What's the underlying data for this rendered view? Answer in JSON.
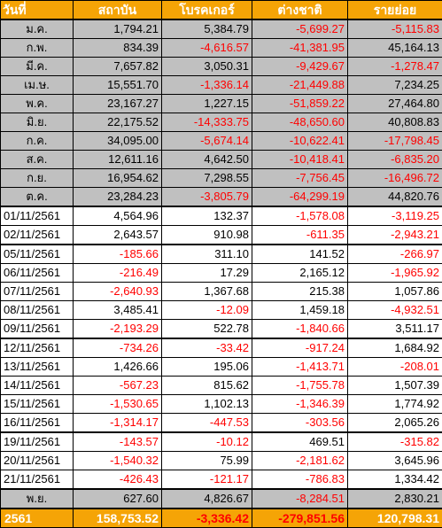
{
  "colors": {
    "header_bg": "#f5a406",
    "month_bg": "#c0c0c0",
    "negative": "#ff0000"
  },
  "headers": [
    "วันที่",
    "สถาบัน",
    "โบรคเกอร์",
    "ต่างชาติ",
    "รายย่อย"
  ],
  "rows": [
    {
      "type": "month",
      "label": "ม.ค.",
      "values": [
        "1,794.21",
        "5,384.79",
        "-5,699.27",
        "-5,115.83"
      ]
    },
    {
      "type": "month",
      "label": "ก.พ.",
      "values": [
        "834.39",
        "-4,616.57",
        "-41,381.95",
        "45,164.13"
      ]
    },
    {
      "type": "month",
      "label": "มี.ค.",
      "values": [
        "7,657.82",
        "3,050.31",
        "-9,429.67",
        "-1,278.47"
      ]
    },
    {
      "type": "month",
      "label": "เม.ษ.",
      "values": [
        "15,551.70",
        "-1,336.14",
        "-21,449.88",
        "7,234.25"
      ]
    },
    {
      "type": "month",
      "label": "พ.ค.",
      "values": [
        "23,167.27",
        "1,227.15",
        "-51,859.22",
        "27,464.80"
      ]
    },
    {
      "type": "month",
      "label": "มิ.ย.",
      "values": [
        "22,175.52",
        "-14,333.75",
        "-48,650.60",
        "40,808.83"
      ]
    },
    {
      "type": "month",
      "label": "ก.ค.",
      "values": [
        "34,095.00",
        "-5,674.14",
        "-10,622.41",
        "-17,798.45"
      ]
    },
    {
      "type": "month",
      "label": "ส.ค.",
      "values": [
        "12,611.16",
        "4,642.50",
        "-10,418.41",
        "-6,835.20"
      ]
    },
    {
      "type": "month",
      "label": "ก.ย.",
      "values": [
        "16,954.62",
        "7,298.55",
        "-7,756.45",
        "-16,496.72"
      ]
    },
    {
      "type": "month",
      "label": "ต.ค.",
      "values": [
        "23,284.23",
        "-3,805.79",
        "-64,299.19",
        "44,820.76"
      ]
    },
    {
      "type": "day",
      "label": "01/11/2561",
      "values": [
        "4,564.96",
        "132.37",
        "-1,578.08",
        "-3,119.25"
      ],
      "week_start": true
    },
    {
      "type": "day",
      "label": "02/11/2561",
      "values": [
        "2,643.57",
        "910.98",
        "-611.35",
        "-2,943.21"
      ]
    },
    {
      "type": "day",
      "label": "05/11/2561",
      "values": [
        "-185.66",
        "311.10",
        "141.52",
        "-266.97"
      ],
      "week_start": true
    },
    {
      "type": "day",
      "label": "06/11/2561",
      "values": [
        "-216.49",
        "17.29",
        "2,165.12",
        "-1,965.92"
      ]
    },
    {
      "type": "day",
      "label": "07/11/2561",
      "values": [
        "-2,640.93",
        "1,367.68",
        "215.38",
        "1,057.86"
      ]
    },
    {
      "type": "day",
      "label": "08/11/2561",
      "values": [
        "3,485.41",
        "-12.09",
        "1,459.18",
        "-4,932.51"
      ]
    },
    {
      "type": "day",
      "label": "09/11/2561",
      "values": [
        "-2,193.29",
        "522.78",
        "-1,840.66",
        "3,511.17"
      ]
    },
    {
      "type": "day",
      "label": "12/11/2561",
      "values": [
        "-734.26",
        "-33.42",
        "-917.24",
        "1,684.92"
      ],
      "week_start": true
    },
    {
      "type": "day",
      "label": "13/11/2561",
      "values": [
        "1,426.66",
        "195.06",
        "-1,413.71",
        "-208.01"
      ]
    },
    {
      "type": "day",
      "label": "14/11/2561",
      "values": [
        "-567.23",
        "815.62",
        "-1,755.78",
        "1,507.39"
      ]
    },
    {
      "type": "day",
      "label": "15/11/2561",
      "values": [
        "-1,530.65",
        "1,102.13",
        "-1,346.39",
        "1,774.92"
      ]
    },
    {
      "type": "day",
      "label": "16/11/2561",
      "values": [
        "-1,314.17",
        "-447.53",
        "-303.56",
        "2,065.26"
      ]
    },
    {
      "type": "day",
      "label": "19/11/2561",
      "values": [
        "-143.57",
        "-10.12",
        "469.51",
        "-315.82"
      ],
      "week_start": true
    },
    {
      "type": "day",
      "label": "20/11/2561",
      "values": [
        "-1,540.32",
        "75.99",
        "-2,181.62",
        "3,645.96"
      ]
    },
    {
      "type": "day",
      "label": "21/11/2561",
      "values": [
        "-426.43",
        "-121.17",
        "-786.83",
        "1,334.42"
      ]
    },
    {
      "type": "summary",
      "label": "พ.ย.",
      "values": [
        "627.60",
        "4,826.67",
        "-8,284.51",
        "2,830.21"
      ]
    }
  ],
  "total": {
    "label": "2561",
    "values": [
      "158,753.52",
      "-3,336.42",
      "-279,851.56",
      "120,798.31"
    ]
  }
}
